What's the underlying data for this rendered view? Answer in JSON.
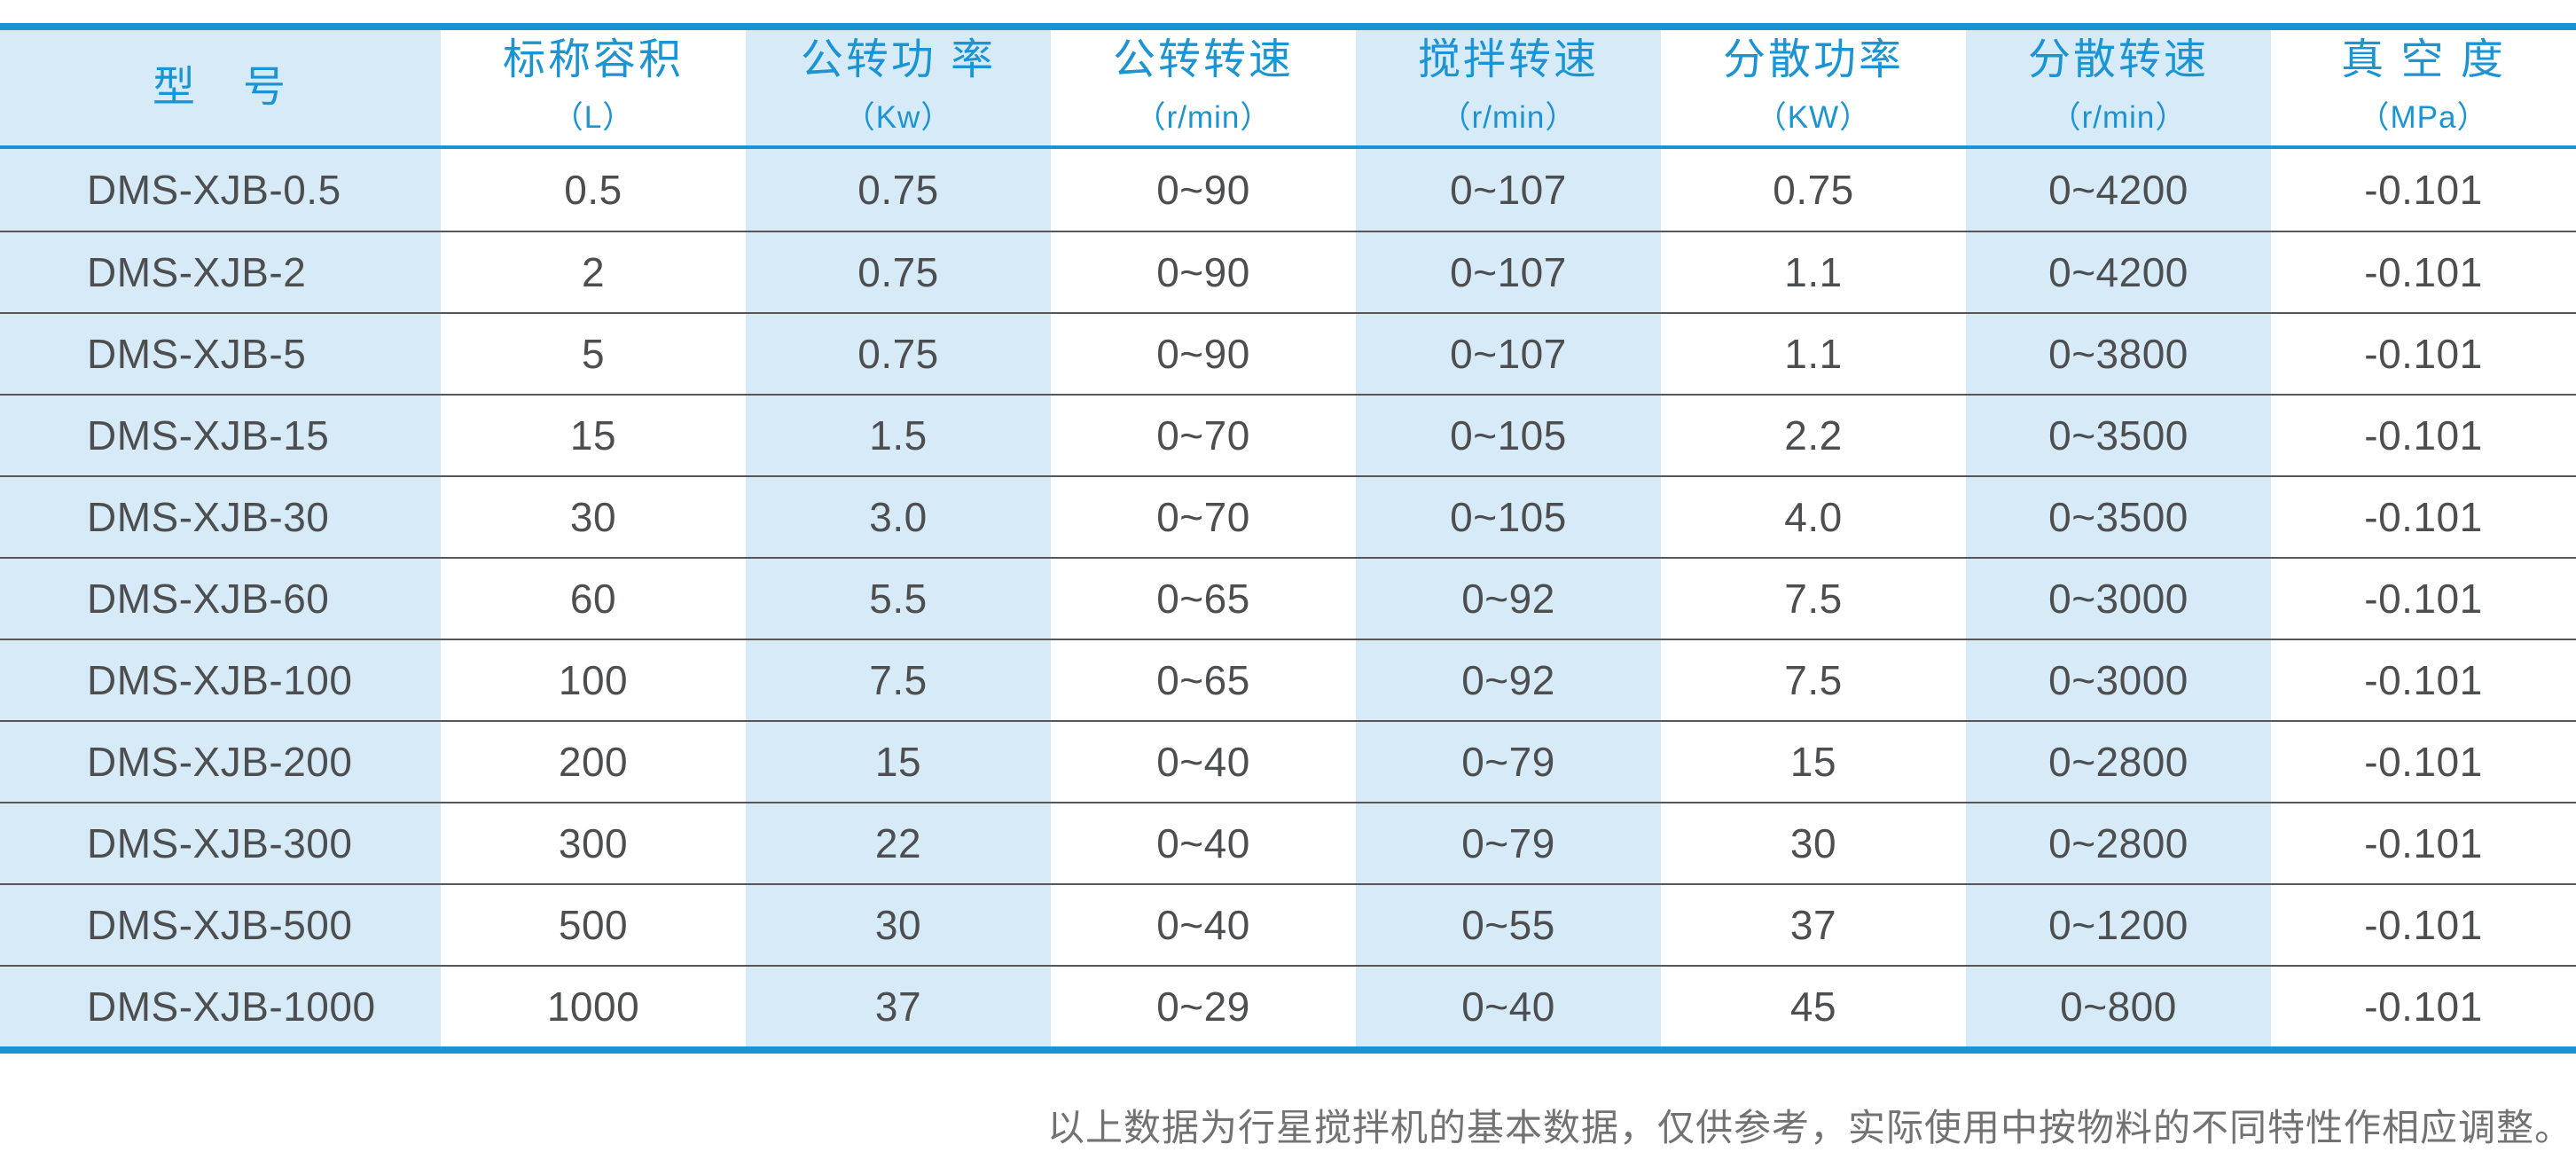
{
  "table": {
    "columns": [
      {
        "title": "型　号",
        "unit": ""
      },
      {
        "title": "标称容积",
        "unit": "（L）"
      },
      {
        "title": "公转功 率",
        "unit": "（Kw）"
      },
      {
        "title": "公转转速",
        "unit": "（r/min）"
      },
      {
        "title": "搅拌转速",
        "unit": "（r/min）"
      },
      {
        "title": "分散功率",
        "unit": "（KW）"
      },
      {
        "title": "分散转速",
        "unit": "（r/min）"
      },
      {
        "title": "真 空 度",
        "unit": "（MPa）"
      }
    ],
    "rows": [
      [
        "DMS-XJB-0.5",
        "0.5",
        "0.75",
        "0~90",
        "0~107",
        "0.75",
        "0~4200",
        "-0.101"
      ],
      [
        "DMS-XJB-2",
        "2",
        "0.75",
        "0~90",
        "0~107",
        "1.1",
        "0~4200",
        "-0.101"
      ],
      [
        "DMS-XJB-5",
        "5",
        "0.75",
        "0~90",
        "0~107",
        "1.1",
        "0~3800",
        "-0.101"
      ],
      [
        "DMS-XJB-15",
        "15",
        "1.5",
        "0~70",
        "0~105",
        "2.2",
        "0~3500",
        "-0.101"
      ],
      [
        "DMS-XJB-30",
        "30",
        "3.0",
        "0~70",
        "0~105",
        "4.0",
        "0~3500",
        "-0.101"
      ],
      [
        "DMS-XJB-60",
        "60",
        "5.5",
        "0~65",
        "0~92",
        "7.5",
        "0~3000",
        "-0.101"
      ],
      [
        "DMS-XJB-100",
        "100",
        "7.5",
        "0~65",
        "0~92",
        "7.5",
        "0~3000",
        "-0.101"
      ],
      [
        "DMS-XJB-200",
        "200",
        "15",
        "0~40",
        "0~79",
        "15",
        "0~2800",
        "-0.101"
      ],
      [
        "DMS-XJB-300",
        "300",
        "22",
        "0~40",
        "0~79",
        "30",
        "0~2800",
        "-0.101"
      ],
      [
        "DMS-XJB-500",
        "500",
        "30",
        "0~40",
        "0~55",
        "37",
        "0~1200",
        "-0.101"
      ],
      [
        "DMS-XJB-1000",
        "1000",
        "37",
        "0~29",
        "0~40",
        "45",
        "0~800",
        "-0.101"
      ]
    ]
  },
  "footnote": "以上数据为行星搅拌机的基本数据，仅供参考，实际使用中按物料的不同特性作相应调整。",
  "colors": {
    "accent": "#1b93d0",
    "header_text": "#1a94d3",
    "cell_alt": "#d7eaf7",
    "body_text": "#4d4e50",
    "separator": "#565656",
    "note_text": "#727272",
    "page_bg": "#ffffff"
  }
}
